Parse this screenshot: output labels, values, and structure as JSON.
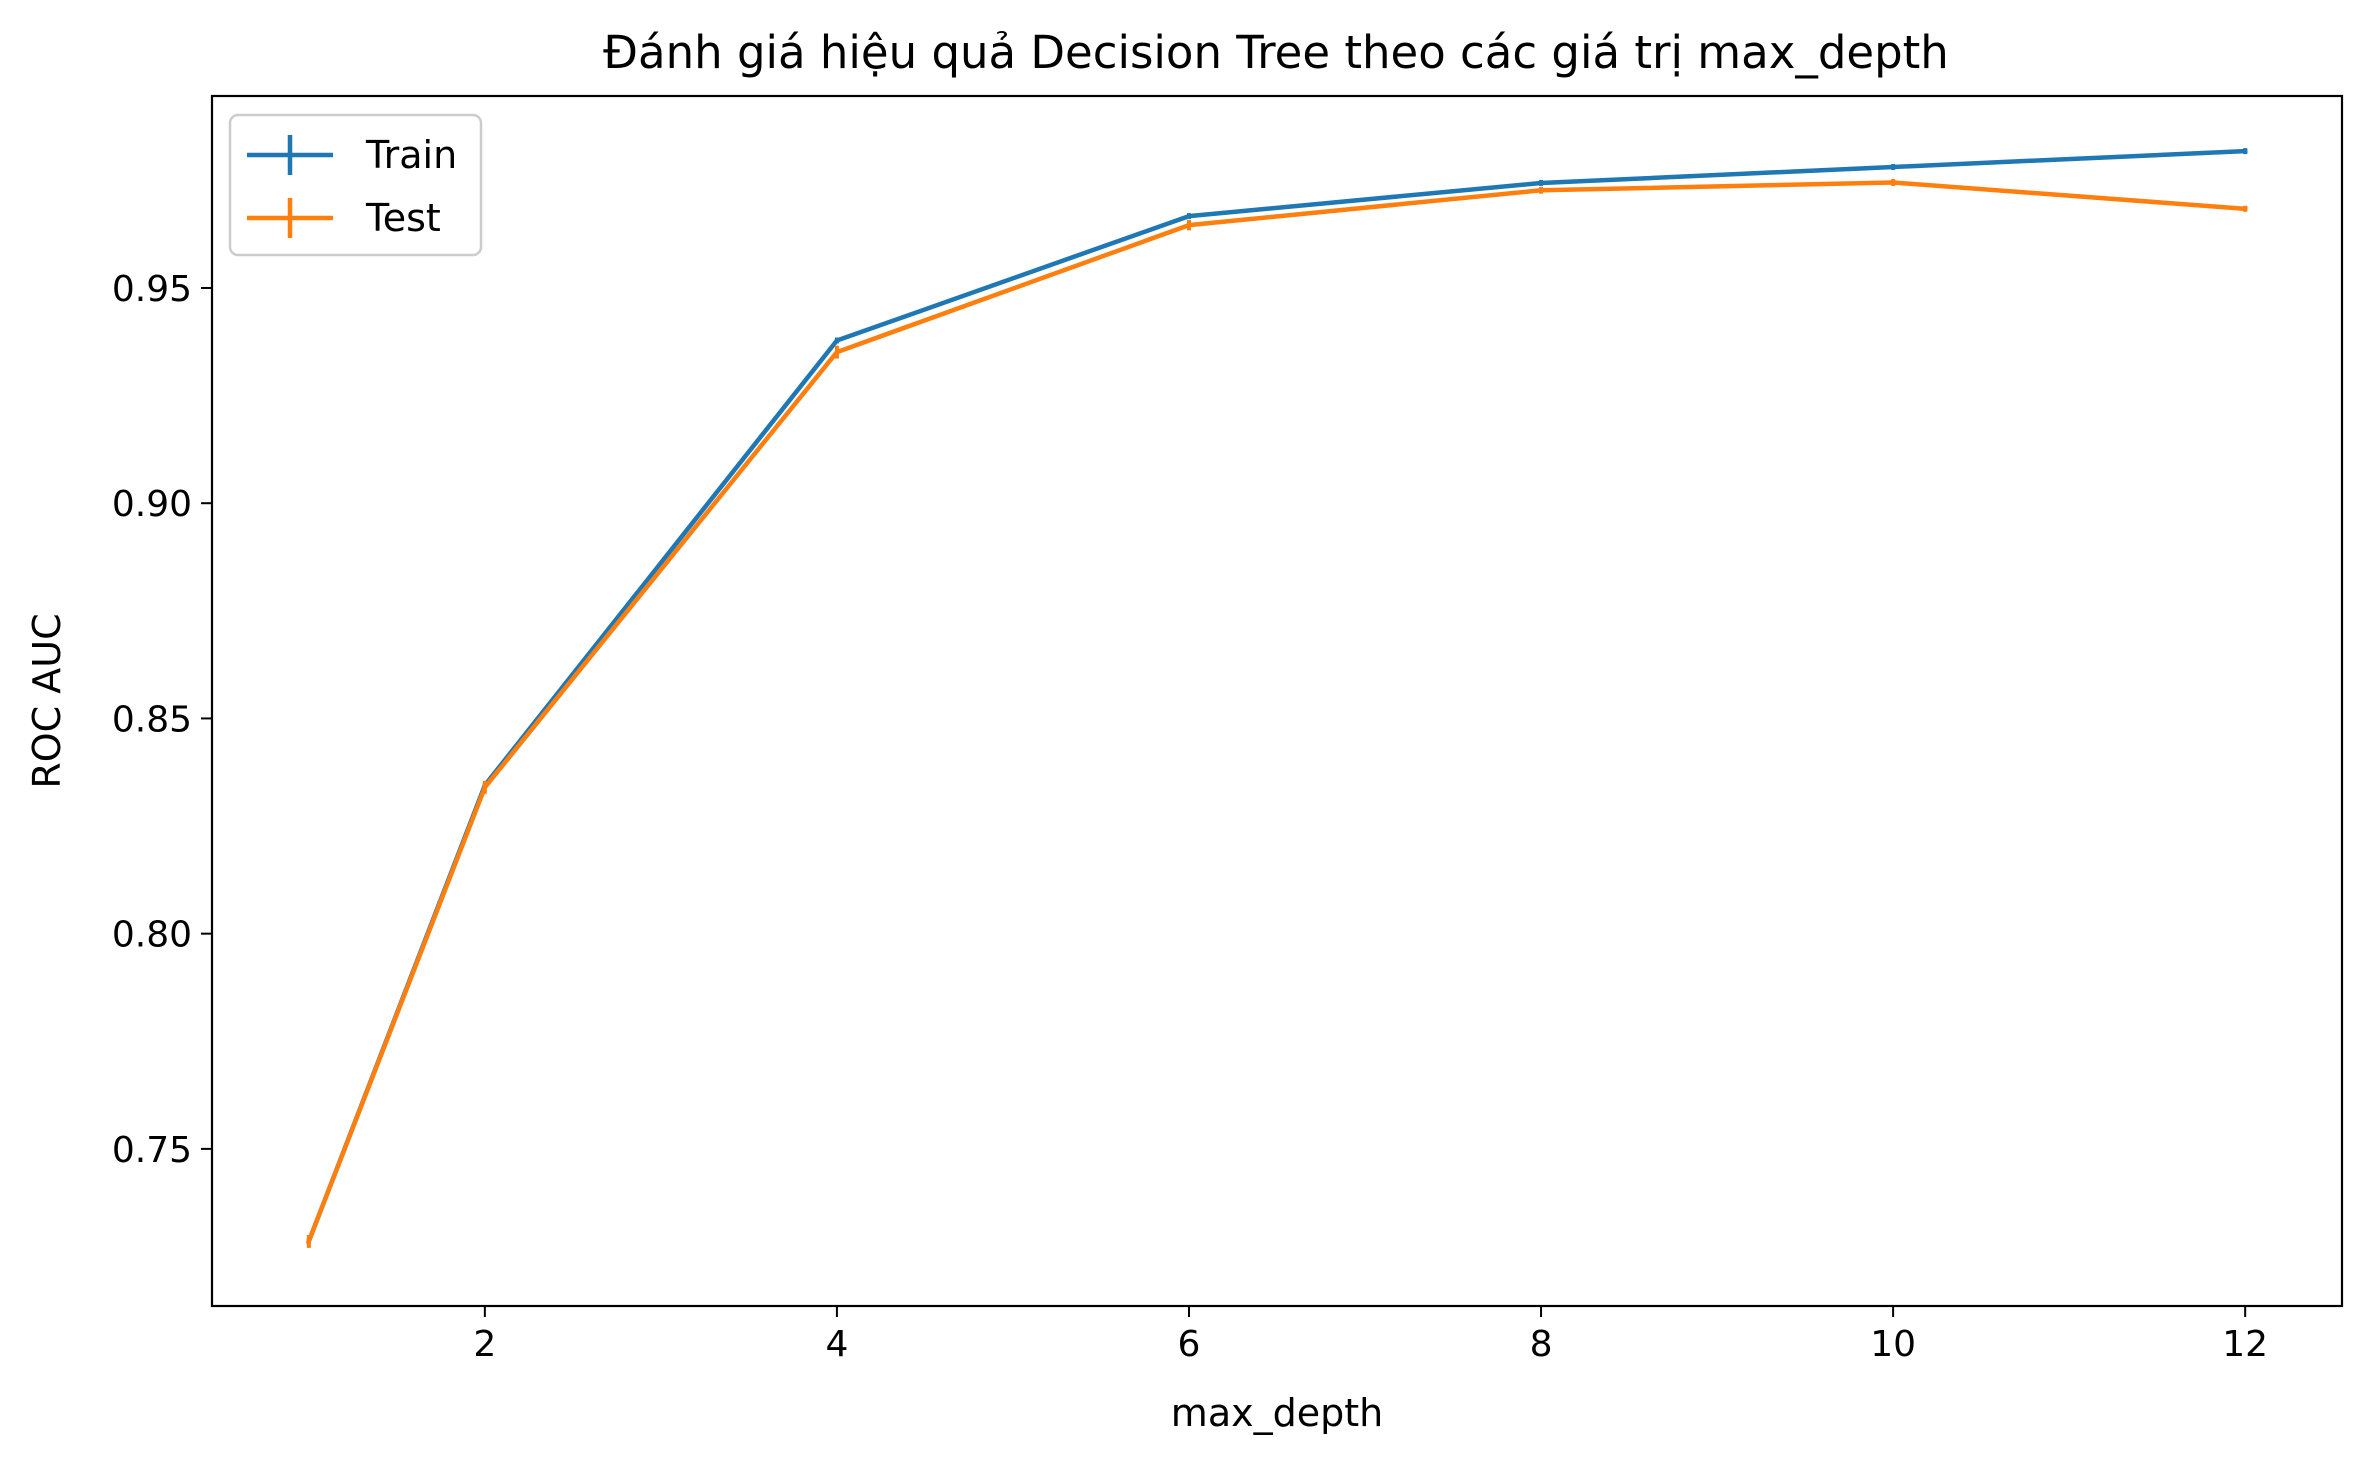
{
  "chart_data": {
    "type": "line",
    "title": "Đánh giá hiệu quả Decision Tree theo các giá trị max_depth",
    "xlabel": "max_depth",
    "ylabel": "ROC AUC",
    "x": [
      1,
      2,
      4,
      6,
      8,
      10,
      12
    ],
    "series": [
      {
        "name": "Train",
        "color": "#1f77b4",
        "values": [
          0.7285,
          0.8345,
          0.9378,
          0.9667,
          0.9744,
          0.9781,
          0.9818
        ],
        "errors": [
          0.0005,
          0.0005,
          0.0005,
          0.0005,
          0.0005,
          0.0005,
          0.0005
        ]
      },
      {
        "name": "Test",
        "color": "#ff7f0e",
        "values": [
          0.7285,
          0.834,
          0.9351,
          0.9646,
          0.9727,
          0.9745,
          0.9684
        ],
        "errors": [
          0.0015,
          0.0015,
          0.0015,
          0.0012,
          0.0008,
          0.0008,
          0.0005
        ]
      }
    ],
    "xlim": [
      0.45,
      12.55
    ],
    "ylim": [
      0.7135,
      0.9946
    ],
    "xticks": [
      2,
      4,
      6,
      8,
      10,
      12
    ],
    "yticks": [
      0.75,
      0.8,
      0.85,
      0.9,
      0.95
    ],
    "grid": false,
    "legend_position": "top-left"
  }
}
